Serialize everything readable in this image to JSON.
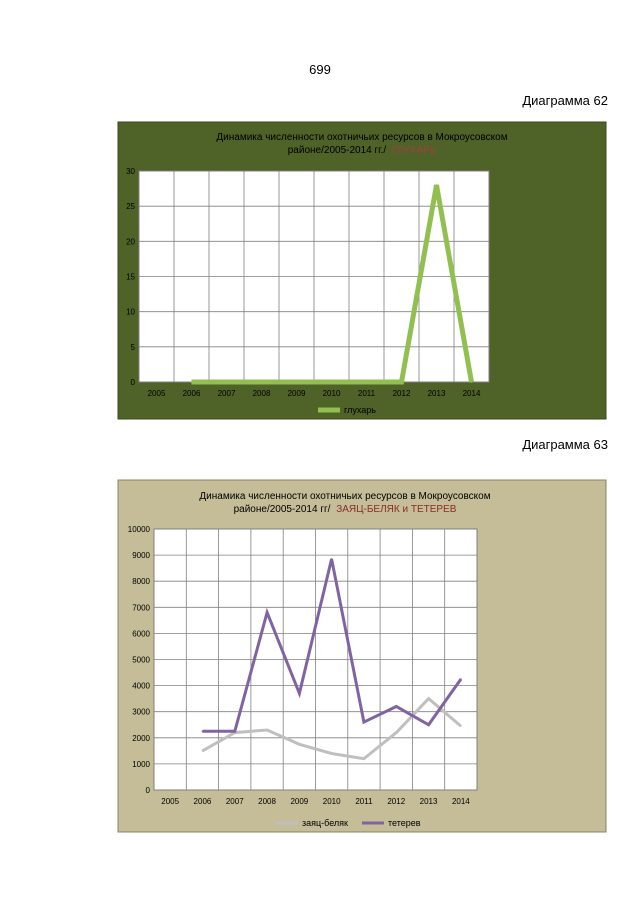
{
  "page": {
    "number": "699",
    "figure_labels": [
      "Диаграмма 62",
      "Диаграмма 63"
    ]
  },
  "chart_data": [
    {
      "type": "line",
      "title_line1": "Динамика численности охотничьих ресурсов  в  Мокроусовском",
      "title_line2_prefix": "районе/2005-2014 гг./",
      "title_highlight": "ГЛУХАРЬ",
      "title_highlight_color": "#a04040",
      "plot_background": "#ffffff",
      "chart_background": "#4f6228",
      "categories": [
        "2005",
        "2006",
        "2007",
        "2008",
        "2009",
        "2010",
        "2011",
        "2012",
        "2013",
        "2014"
      ],
      "ylim": [
        0,
        30
      ],
      "yticks": [
        0,
        5,
        10,
        15,
        20,
        25,
        30
      ],
      "grid": true,
      "legend_position": "bottom",
      "series": [
        {
          "name": "глухарь",
          "color": "#92c050",
          "values": [
            null,
            0,
            0,
            0,
            0,
            0,
            0,
            0,
            28,
            0
          ]
        }
      ]
    },
    {
      "type": "line",
      "title_line1": "Динамика численности  охотничьих ресурсов   в  Мокроусовском",
      "title_line2_prefix": "районе/2005-2014  гг/",
      "title_highlight": "ЗАЯЦ-БЕЛЯК  и  ТЕТЕРЕВ",
      "title_highlight_color": "#8b2a2a",
      "plot_background": "#ffffff",
      "chart_background": "#c4bd97",
      "categories": [
        "2005",
        "2006",
        "2007",
        "2008",
        "2009",
        "2010",
        "2011",
        "2012",
        "2013",
        "2014"
      ],
      "ylim": [
        0,
        10000
      ],
      "yticks": [
        0,
        1000,
        2000,
        3000,
        4000,
        5000,
        6000,
        7000,
        8000,
        9000,
        10000
      ],
      "grid": true,
      "legend_position": "bottom",
      "series": [
        {
          "name": "заяц-беляк",
          "color": "#bfbfbf",
          "values": [
            null,
            1500,
            2200,
            2300,
            1750,
            1400,
            1200,
            2200,
            3500,
            2450
          ]
        },
        {
          "name": "тетерев",
          "color": "#8064a2",
          "values": [
            null,
            2250,
            2250,
            6800,
            3700,
            8850,
            2600,
            3200,
            2500,
            4250
          ]
        }
      ]
    }
  ]
}
